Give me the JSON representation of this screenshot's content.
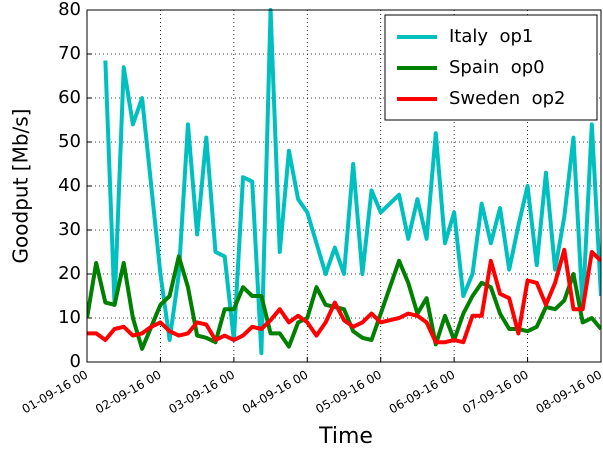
{
  "chart_data": {
    "type": "line",
    "x_label": "Time",
    "y_label": "Goodput [Mb/s]",
    "x": [
      0,
      3,
      6,
      9,
      12,
      15,
      18,
      21,
      24,
      27,
      30,
      33,
      36,
      39,
      42,
      45,
      48,
      51,
      54,
      57,
      60,
      63,
      66,
      69,
      72,
      75,
      78,
      81,
      84,
      87,
      90,
      93,
      96,
      99,
      102,
      105,
      108,
      111,
      114,
      117,
      120,
      123,
      126,
      129,
      132,
      135,
      138,
      141,
      144,
      147,
      150,
      153,
      156,
      159,
      162,
      165,
      168
    ],
    "series": [
      {
        "name": "Italy  op1",
        "color": "#00bfbf",
        "values": [
          null,
          null,
          68.5,
          13,
          67,
          54,
          60,
          40,
          20,
          5,
          20,
          54,
          29,
          51,
          25,
          24,
          5,
          42,
          41,
          2,
          80,
          25,
          48,
          37,
          34,
          27,
          20,
          26,
          20,
          45,
          20,
          39,
          34,
          36,
          38,
          28,
          37,
          28,
          52,
          27,
          34,
          15,
          20,
          36,
          27,
          35,
          21,
          31,
          40,
          22,
          43,
          21,
          33,
          51,
          12,
          54,
          15
        ]
      },
      {
        "name": "Spain  op0",
        "color": "#008000",
        "values": [
          10,
          22.5,
          13.5,
          13,
          22.5,
          10,
          3,
          8,
          13,
          15,
          24,
          17,
          6,
          5.5,
          4.5,
          12,
          12,
          17,
          15,
          15,
          6.5,
          6.5,
          3.5,
          9,
          10,
          17,
          13,
          12.5,
          12,
          7,
          5.5,
          5,
          11,
          17,
          23,
          18,
          11,
          14.5,
          4,
          10.5,
          5,
          11,
          15,
          18,
          17,
          11,
          7.5,
          7.5,
          7,
          8,
          12.5,
          12,
          14,
          20,
          9,
          10,
          7.5
        ]
      },
      {
        "name": "Sweden  op2",
        "color": "#ff0000",
        "values": [
          6.5,
          6.5,
          5,
          7.5,
          8,
          6,
          6.5,
          8,
          9,
          7,
          6,
          6.5,
          9,
          8.5,
          5,
          6,
          5,
          6,
          8,
          7.5,
          9.5,
          12,
          9,
          10.5,
          9,
          6,
          9,
          13.5,
          9.5,
          8,
          9,
          11,
          9,
          9.5,
          10,
          11,
          10.5,
          9,
          4.5,
          4.5,
          5,
          4.5,
          10.5,
          10.5,
          23,
          15.5,
          14.5,
          6.5,
          18.5,
          18,
          13,
          18,
          25.5,
          12,
          12,
          25,
          23
        ]
      }
    ],
    "xlim": [
      0,
      168
    ],
    "xticks": [
      {
        "value": 0,
        "label": "01-09-16 00"
      },
      {
        "value": 24,
        "label": "02-09-16 00"
      },
      {
        "value": 48,
        "label": "03-09-16 00"
      },
      {
        "value": 72,
        "label": "04-09-16 00"
      },
      {
        "value": 96,
        "label": "05-09-16 00"
      },
      {
        "value": 120,
        "label": "06-09-16 00"
      },
      {
        "value": 144,
        "label": "07-09-16 00"
      },
      {
        "value": 168,
        "label": "08-09-16 00"
      }
    ],
    "ylim": [
      0,
      80
    ],
    "yticks": [
      0,
      10,
      20,
      30,
      40,
      50,
      60,
      70,
      80
    ],
    "grid": true,
    "legend": "upper right"
  }
}
